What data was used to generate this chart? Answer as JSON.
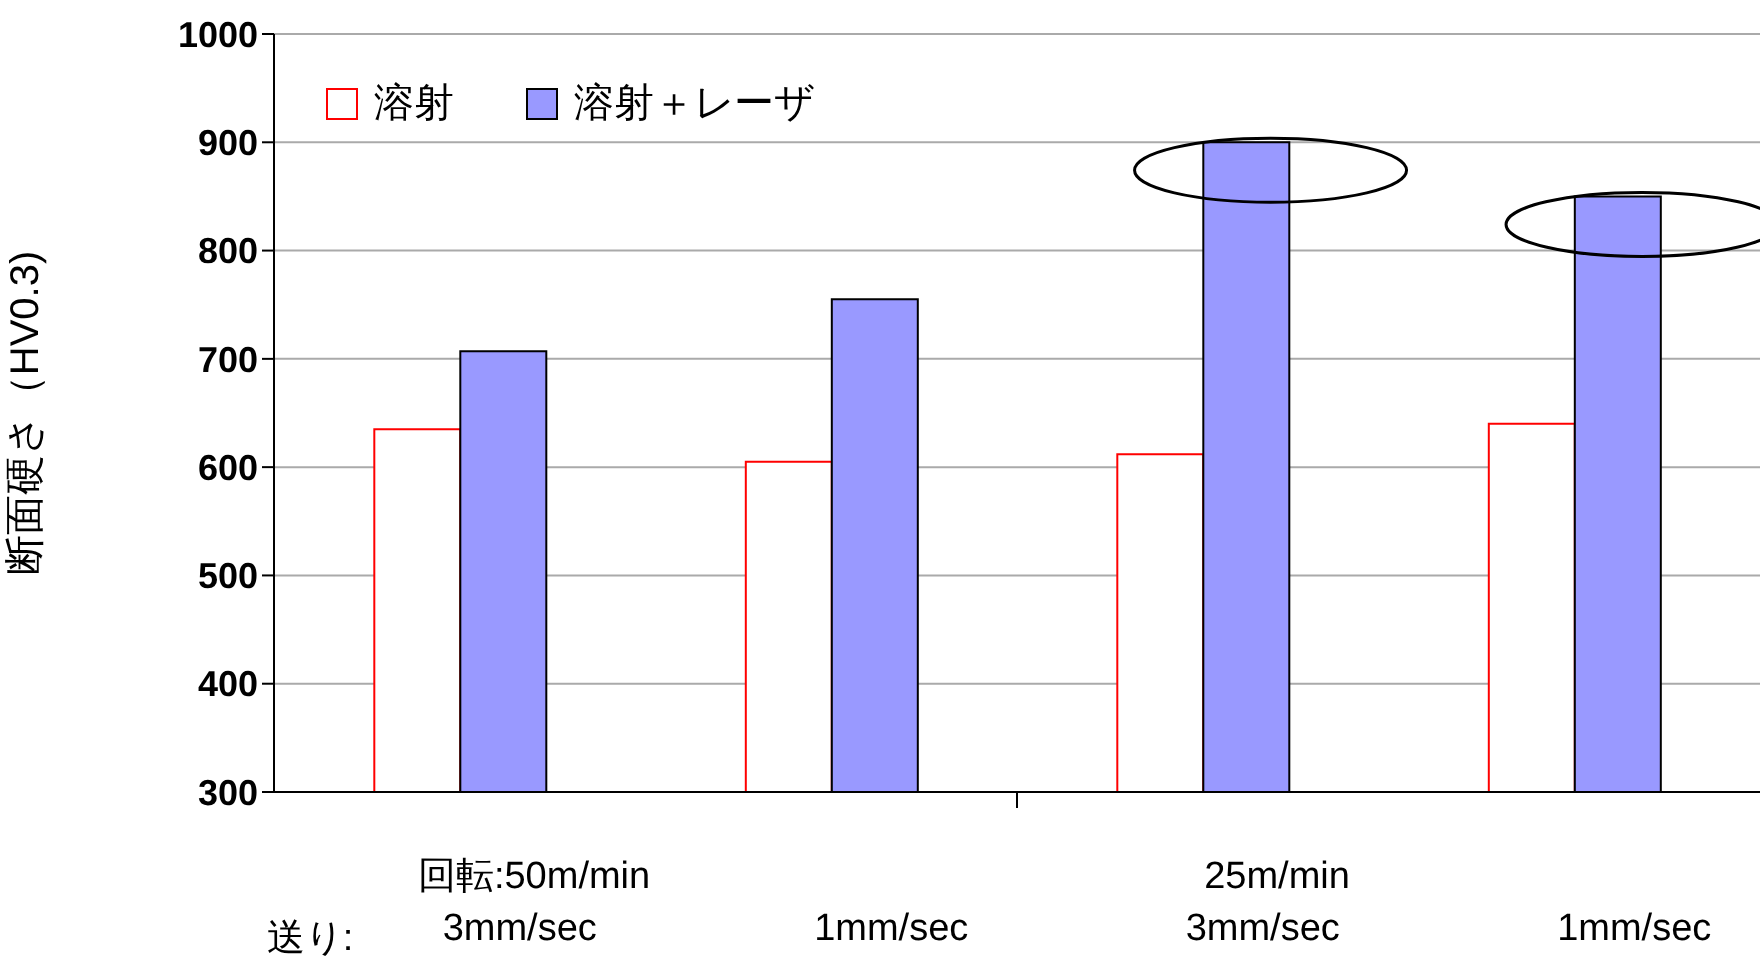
{
  "chart_data": {
    "type": "bar",
    "ylabel": "断面硬さ（HV0.3)",
    "categories": [
      "3mm/sec",
      "1mm/sec",
      "3mm/sec",
      "1mm/sec"
    ],
    "series": [
      {
        "name": "溶射",
        "color": "#ffffff",
        "values": [
          635,
          605,
          612,
          640
        ]
      },
      {
        "name": "溶射＋レーザ",
        "color": "#9999ff",
        "values": [
          707,
          755,
          900,
          850
        ]
      }
    ],
    "ylim": [
      300,
      1000
    ],
    "yticks": [
      300,
      400,
      500,
      600,
      700,
      800,
      900,
      1000
    ],
    "grid": "y",
    "legend": "top left",
    "annotations": [
      "回転:50m/min",
      "25m/min",
      "送り:"
    ]
  }
}
